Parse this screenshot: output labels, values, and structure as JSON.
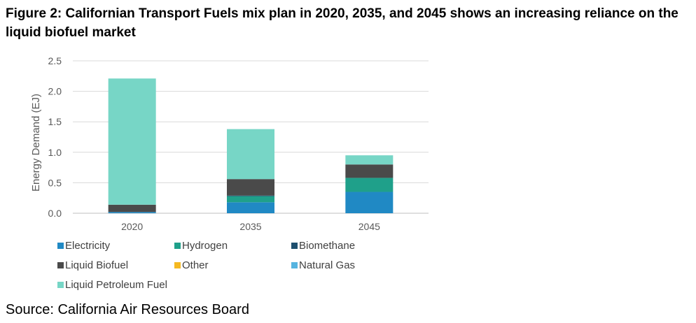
{
  "figure": {
    "title": "Figure 2: Californian Transport Fuels mix plan in 2020, 2035, and 2045 shows an increasing reliance on the liquid biofuel market",
    "source": "Source: California Air Resources Board"
  },
  "chart_data": {
    "type": "bar",
    "stacked": true,
    "categories": [
      "2020",
      "2035",
      "2045"
    ],
    "series": [
      {
        "name": "Electricity",
        "color": "#2089c4",
        "values": [
          0.02,
          0.18,
          0.35
        ]
      },
      {
        "name": "Hydrogen",
        "color": "#1fa08a",
        "values": [
          0.0,
          0.1,
          0.23
        ]
      },
      {
        "name": "Biomethane",
        "color": "#1d4f6e",
        "values": [
          0.0,
          0.01,
          0.0
        ]
      },
      {
        "name": "Liquid Biofuel",
        "color": "#4a4a4a",
        "values": [
          0.12,
          0.27,
          0.22
        ]
      },
      {
        "name": "Other",
        "color": "#f5b921",
        "values": [
          0.0,
          0.0,
          0.0
        ]
      },
      {
        "name": "Natural Gas",
        "color": "#56b4e0",
        "values": [
          0.0,
          0.0,
          0.0
        ]
      },
      {
        "name": "Liquid Petroleum Fuel",
        "color": "#77d6c6",
        "values": [
          2.07,
          0.82,
          0.15
        ]
      }
    ],
    "xlabel": "",
    "ylabel": "Energy Demand (EJ)",
    "ylim": [
      0,
      2.5
    ],
    "yticks": [
      "0.0",
      "0.5",
      "1.0",
      "1.5",
      "2.0",
      "2.5"
    ],
    "grid": true,
    "legend_position": "bottom"
  }
}
